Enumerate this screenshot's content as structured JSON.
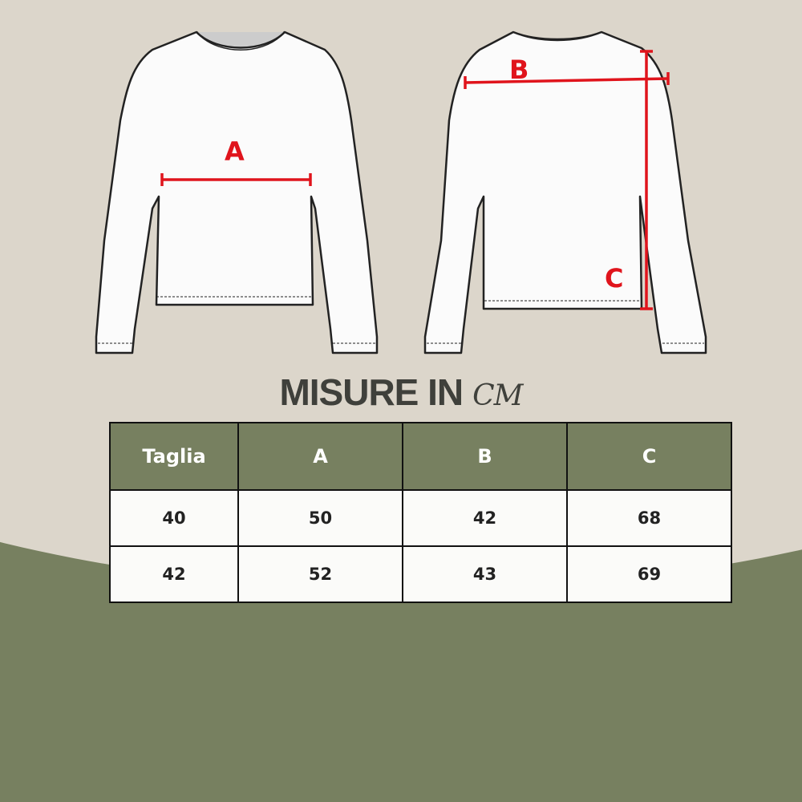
{
  "colors": {
    "background_top": "#dcd6cb",
    "background_bottom": "#778060",
    "header_fill": "#778060",
    "measure_line": "#e0141c"
  },
  "diagram": {
    "front_label": "A",
    "back_width_label": "B",
    "back_length_label": "C"
  },
  "title": {
    "text": "MISURE IN",
    "unit": "CM"
  },
  "table": {
    "headers": [
      "Taglia",
      "A",
      "B",
      "C"
    ],
    "rows": [
      [
        "40",
        "50",
        "42",
        "68"
      ],
      [
        "42",
        "52",
        "43",
        "69"
      ]
    ]
  }
}
